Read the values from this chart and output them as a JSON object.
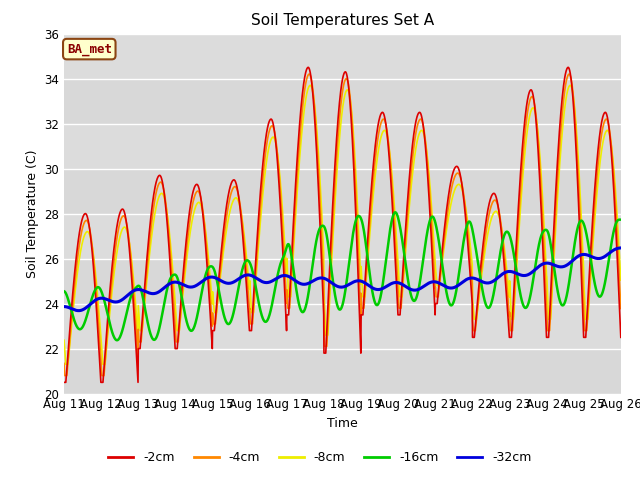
{
  "title": "Soil Temperatures Set A",
  "xlabel": "Time",
  "ylabel": "Soil Temperature (C)",
  "ylim": [
    20,
    36
  ],
  "bg_color": "#dcdcdc",
  "plot_bg_color": "#dcdcdc",
  "tick_labels": [
    "Aug 11",
    "Aug 12",
    "Aug 13",
    "Aug 14",
    "Aug 15",
    "Aug 16",
    "Aug 17",
    "Aug 18",
    "Aug 19",
    "Aug 20",
    "Aug 21",
    "Aug 22",
    "Aug 23",
    "Aug 24",
    "Aug 25",
    "Aug 26"
  ],
  "legend_label_box": "BA_met",
  "line_colors": {
    "-2cm": "#dd0000",
    "-4cm": "#ff8800",
    "-8cm": "#eeee00",
    "-16cm": "#00cc00",
    "-32cm": "#0000dd"
  },
  "line_widths": {
    "-2cm": 1.2,
    "-4cm": 1.2,
    "-8cm": 1.2,
    "-16cm": 1.8,
    "-32cm": 2.2
  },
  "yticks": [
    20,
    22,
    24,
    26,
    28,
    30,
    32,
    34,
    36
  ]
}
